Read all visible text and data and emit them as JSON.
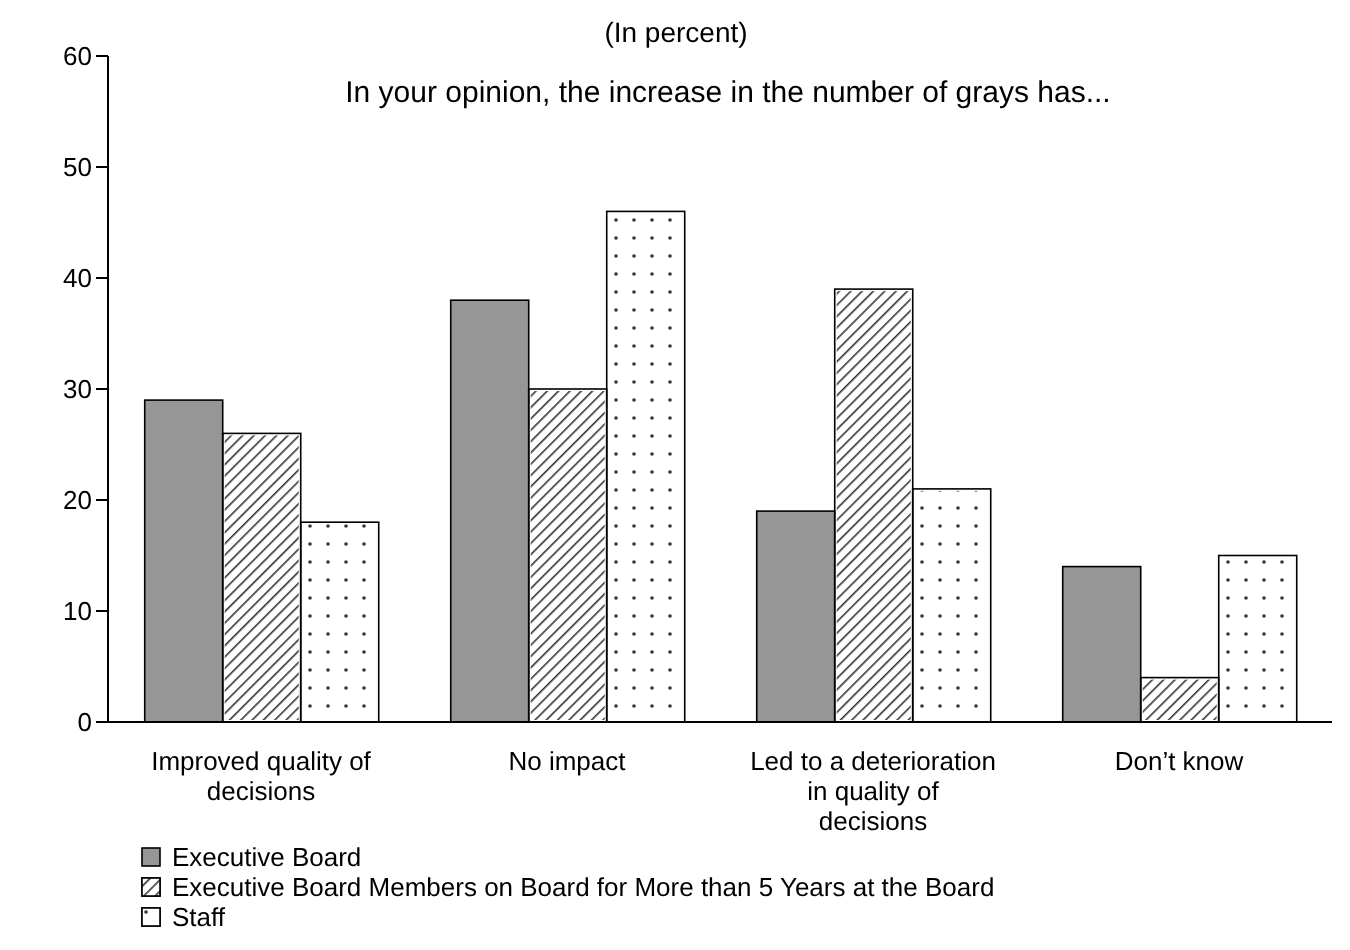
{
  "chart_data": {
    "type": "bar",
    "title": "(In percent)",
    "annotations": [
      "In your opinion, the increase in the number of grays has..."
    ],
    "categories": [
      "Improved quality of decisions",
      "No impact",
      "Led to a deterioration in quality of decisions",
      "Don’t know"
    ],
    "series": [
      {
        "name": "Executive Board",
        "color": "#969696",
        "values": [
          29,
          38,
          19,
          14
        ]
      },
      {
        "name": "Executive Board Members on Board for More than 5 Years at the Board",
        "color": "#ffffff",
        "values": [
          26,
          30,
          39,
          4
        ]
      },
      {
        "name": "Staff",
        "color": "#ffffff",
        "values": [
          18,
          46,
          21,
          15
        ]
      }
    ],
    "ylim": [
      0,
      60
    ],
    "yticks": [
      0,
      10,
      20,
      30,
      40,
      50,
      60
    ],
    "grid": false,
    "legend": "bottom"
  }
}
